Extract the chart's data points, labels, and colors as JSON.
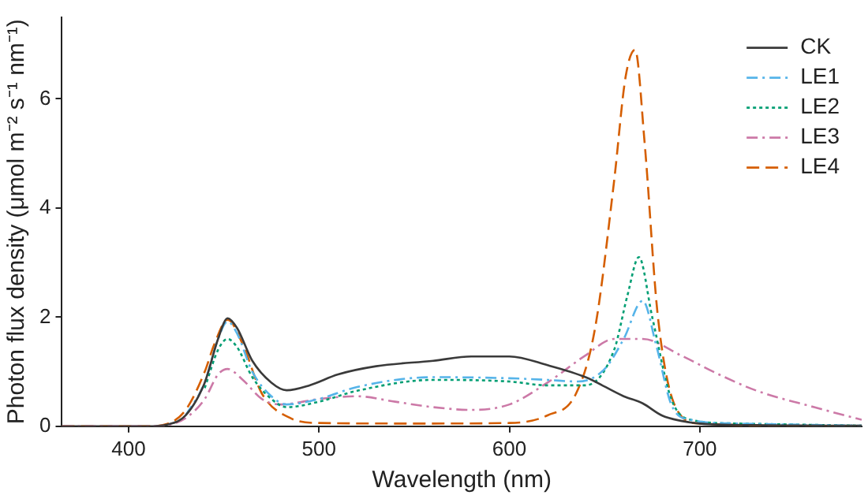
{
  "chart_data": {
    "type": "line",
    "xlabel": "Wavelength (nm)",
    "ylabel": "Photon flux density (μmol m⁻² s⁻¹ nm⁻¹)",
    "xlim": [
      365,
      785
    ],
    "xticks": [
      400,
      500,
      600,
      700
    ],
    "ylim": [
      0,
      7.5
    ],
    "yticks": [
      0,
      2,
      4,
      6
    ],
    "grid": false,
    "legend": "top right",
    "marker": "none",
    "series": [
      {
        "name": "CK",
        "color": "#3a3a3a",
        "line_style": "solid",
        "x": [
          365,
          410,
          420,
          430,
          440,
          447,
          452,
          457,
          465,
          475,
          483,
          495,
          510,
          530,
          560,
          580,
          600,
          620,
          640,
          660,
          670,
          680,
          690,
          700,
          730,
          785
        ],
        "values": [
          0,
          0,
          0.03,
          0.2,
          0.8,
          1.6,
          1.98,
          1.8,
          1.2,
          0.8,
          0.66,
          0.75,
          0.95,
          1.1,
          1.2,
          1.28,
          1.28,
          1.12,
          0.9,
          0.55,
          0.42,
          0.2,
          0.1,
          0.05,
          0.02,
          0.01
        ]
      },
      {
        "name": "LE1",
        "color": "#56b4e9",
        "line_style": "dashdot",
        "x": [
          430,
          440,
          447,
          452,
          457,
          465,
          475,
          483,
          500,
          520,
          560,
          600,
          620,
          636,
          650,
          660,
          670,
          677,
          685,
          695,
          720,
          785
        ],
        "values": [
          0.2,
          0.8,
          1.6,
          1.92,
          1.7,
          1.0,
          0.55,
          0.4,
          0.5,
          0.72,
          0.9,
          0.88,
          0.85,
          0.82,
          1.05,
          1.6,
          2.3,
          1.5,
          0.4,
          0.12,
          0.05,
          0.01
        ]
      },
      {
        "name": "LE2",
        "color": "#009e73",
        "line_style": "dotted",
        "x": [
          440,
          447,
          452,
          457,
          465,
          475,
          483,
          500,
          520,
          560,
          600,
          620,
          640,
          655,
          662,
          668,
          675,
          685,
          695,
          720,
          785
        ],
        "values": [
          0.7,
          1.4,
          1.6,
          1.45,
          0.9,
          0.5,
          0.35,
          0.45,
          0.65,
          0.85,
          0.82,
          0.75,
          0.75,
          1.4,
          2.4,
          3.1,
          2.0,
          0.5,
          0.12,
          0.05,
          0.01
        ]
      },
      {
        "name": "LE3",
        "color": "#cc79a7",
        "line_style": "dashdot",
        "x": [
          365,
          410,
          420,
          430,
          440,
          447,
          452,
          460,
          470,
          480,
          500,
          520,
          540,
          560,
          580,
          600,
          620,
          640,
          655,
          670,
          690,
          710,
          730,
          760,
          785
        ],
        "values": [
          0,
          0,
          0.02,
          0.15,
          0.5,
          0.95,
          1.05,
          0.85,
          0.5,
          0.4,
          0.5,
          0.55,
          0.45,
          0.35,
          0.3,
          0.4,
          0.8,
          1.3,
          1.6,
          1.6,
          1.3,
          0.95,
          0.65,
          0.35,
          0.12
        ]
      },
      {
        "name": "LE4",
        "color": "#d55e00",
        "line_style": "dashed",
        "x": [
          365,
          410,
          420,
          430,
          440,
          445,
          452,
          460,
          470,
          485,
          500,
          550,
          600,
          620,
          635,
          645,
          655,
          661,
          666,
          671,
          678,
          688,
          700,
          785
        ],
        "values": [
          0,
          0,
          0.04,
          0.3,
          1.0,
          1.5,
          1.95,
          1.5,
          0.6,
          0.15,
          0.06,
          0.05,
          0.06,
          0.2,
          0.6,
          1.8,
          4.5,
          6.4,
          6.9,
          5.2,
          2.0,
          0.3,
          0.05,
          0
        ]
      }
    ]
  }
}
